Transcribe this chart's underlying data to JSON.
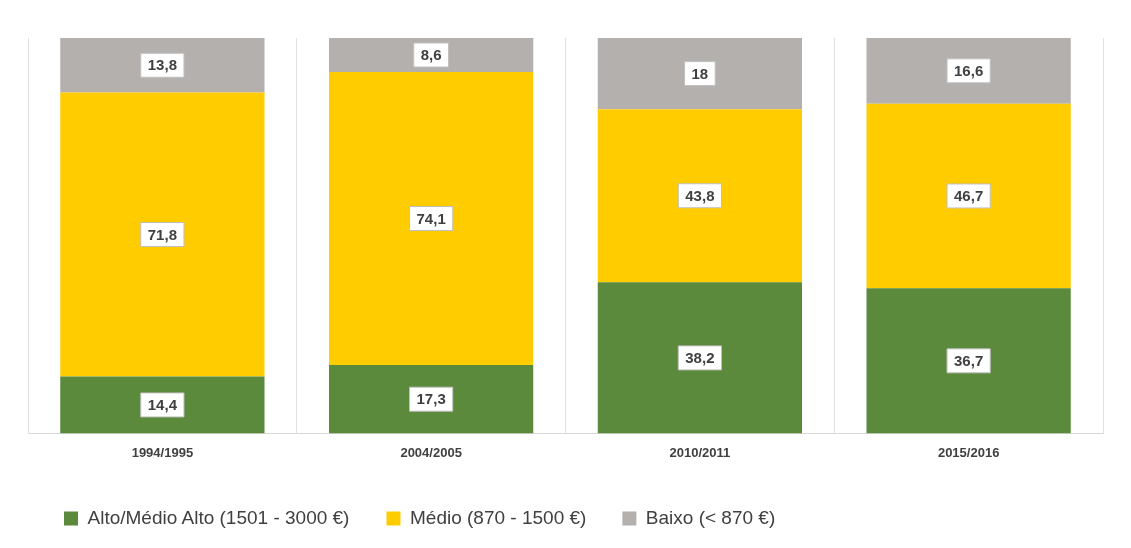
{
  "chart_data": {
    "type": "bar",
    "stacked": true,
    "categories": [
      "1994/1995",
      "2004/2005",
      "2010/2011",
      "2015/2016"
    ],
    "series": [
      {
        "name": "Alto/Médio Alto (1501 - 3000 €)",
        "color": "#5b8a3c",
        "values": [
          14.4,
          17.3,
          38.2,
          36.7
        ],
        "value_labels": [
          "14,4",
          "17,3",
          "38,2",
          "36,7"
        ]
      },
      {
        "name": "Médio (870 - 1500 €)",
        "color": "#ffcc00",
        "values": [
          71.8,
          74.1,
          43.8,
          46.7
        ],
        "value_labels": [
          "71,8",
          "74,1",
          "43,8",
          "46,7"
        ]
      },
      {
        "name": "Baixo (< 870 €)",
        "color": "#b4b0ae",
        "values": [
          13.8,
          8.6,
          18,
          16.6
        ],
        "value_labels": [
          "13,8",
          "8,6",
          "18",
          "16,6"
        ]
      }
    ],
    "grid": "x",
    "legend": "bottom left"
  }
}
